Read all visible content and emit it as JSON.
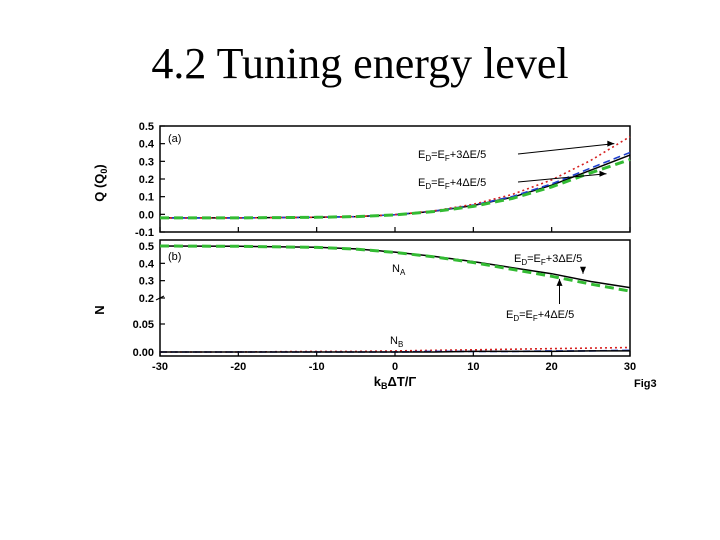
{
  "slide": {
    "title": "4.2 Tuning energy level"
  },
  "figure_label": "Fig3",
  "chart_data": [
    {
      "type": "line",
      "panel_label": "(a)",
      "ylabel": "Q (Q0)",
      "xlim": [
        -30,
        30
      ],
      "ylim": [
        -0.1,
        0.5
      ],
      "yticks": [
        "-0.1",
        "0.0",
        "0.1",
        "0.2",
        "0.3",
        "0.4",
        "0.5"
      ],
      "x": [
        -30,
        -20,
        -10,
        -5,
        0,
        5,
        10,
        15,
        20,
        25,
        30
      ],
      "series": [
        {
          "color": "#000000",
          "dash": "solid",
          "values": [
            -0.02,
            -0.02,
            -0.017,
            -0.013,
            -0.002,
            0.018,
            0.05,
            0.097,
            0.165,
            0.25,
            0.335
          ]
        },
        {
          "color": "#1f3fcc",
          "dash": "dashed",
          "values": [
            -0.02,
            -0.02,
            -0.017,
            -0.013,
            -0.002,
            0.019,
            0.052,
            0.101,
            0.172,
            0.262,
            0.35
          ]
        },
        {
          "color": "#d62020",
          "dash": "dotted",
          "values": [
            -0.02,
            -0.02,
            -0.017,
            -0.013,
            -0.002,
            0.02,
            0.057,
            0.113,
            0.195,
            0.305,
            0.44
          ]
        },
        {
          "color": "#33bb33",
          "dash": "dashed-thick",
          "values": [
            -0.02,
            -0.02,
            -0.017,
            -0.013,
            -0.003,
            0.016,
            0.045,
            0.09,
            0.155,
            0.235,
            0.31
          ]
        }
      ],
      "annotations": [
        {
          "text": "ED=EF+3ΔE/5",
          "target": [
            28,
            0.4
          ]
        },
        {
          "text": "ED=EF+4ΔE/5",
          "target": [
            27,
            0.23
          ]
        }
      ]
    },
    {
      "type": "line",
      "panel_label": "(b)",
      "ylabel": "N",
      "xlim": [
        -30,
        30
      ],
      "xlabel": "kBΔT/Γ",
      "xticks": [
        "-30",
        "-20",
        "-10",
        "0",
        "10",
        "20",
        "30"
      ],
      "yticks": [
        "0.00",
        "0.05",
        "0.2",
        "0.3",
        "0.4",
        "0.5"
      ],
      "y_axis_break": "between 0.05 and 0.2",
      "x": [
        -30,
        -20,
        -10,
        -5,
        0,
        5,
        10,
        15,
        20,
        25,
        30
      ],
      "series": [
        {
          "label": "NA",
          "color": "#000000",
          "dash": "solid",
          "values": [
            0.5,
            0.498,
            0.493,
            0.483,
            0.465,
            0.44,
            0.41,
            0.375,
            0.34,
            0.295,
            0.26
          ]
        },
        {
          "label": "NA",
          "color": "#33bb33",
          "dash": "dashed-thick",
          "values": [
            0.5,
            0.498,
            0.492,
            0.482,
            0.463,
            0.437,
            0.405,
            0.365,
            0.325,
            0.28,
            0.24
          ]
        },
        {
          "label": "NB",
          "color": "#d62020",
          "dash": "dotted",
          "values": [
            0.0,
            0.0,
            0.001,
            0.001,
            0.002,
            0.003,
            0.004,
            0.005,
            0.006,
            0.007,
            0.008
          ]
        },
        {
          "label": "NB",
          "color": "#1f3fcc",
          "dash": "dashed",
          "values": [
            0.0,
            0.0,
            0.0,
            0.0,
            0.0,
            0.001,
            0.001,
            0.001,
            0.002,
            0.002,
            0.003
          ]
        },
        {
          "label": "NB",
          "color": "#000000",
          "dash": "solid",
          "values": [
            0.0,
            0.0,
            0.0,
            0.0,
            0.0,
            0.0,
            0.001,
            0.001,
            0.001,
            0.002,
            0.002
          ]
        }
      ],
      "annotations": [
        {
          "text": "NA",
          "position": [
            -1,
            0.375
          ]
        },
        {
          "text": "NB",
          "position": [
            -1,
            0.012
          ]
        },
        {
          "text": "ED=EF+3ΔE/5",
          "target": [
            24,
            0.34
          ]
        },
        {
          "text": "ED=EF+4ΔE/5",
          "target": [
            21,
            0.31
          ]
        }
      ]
    }
  ]
}
